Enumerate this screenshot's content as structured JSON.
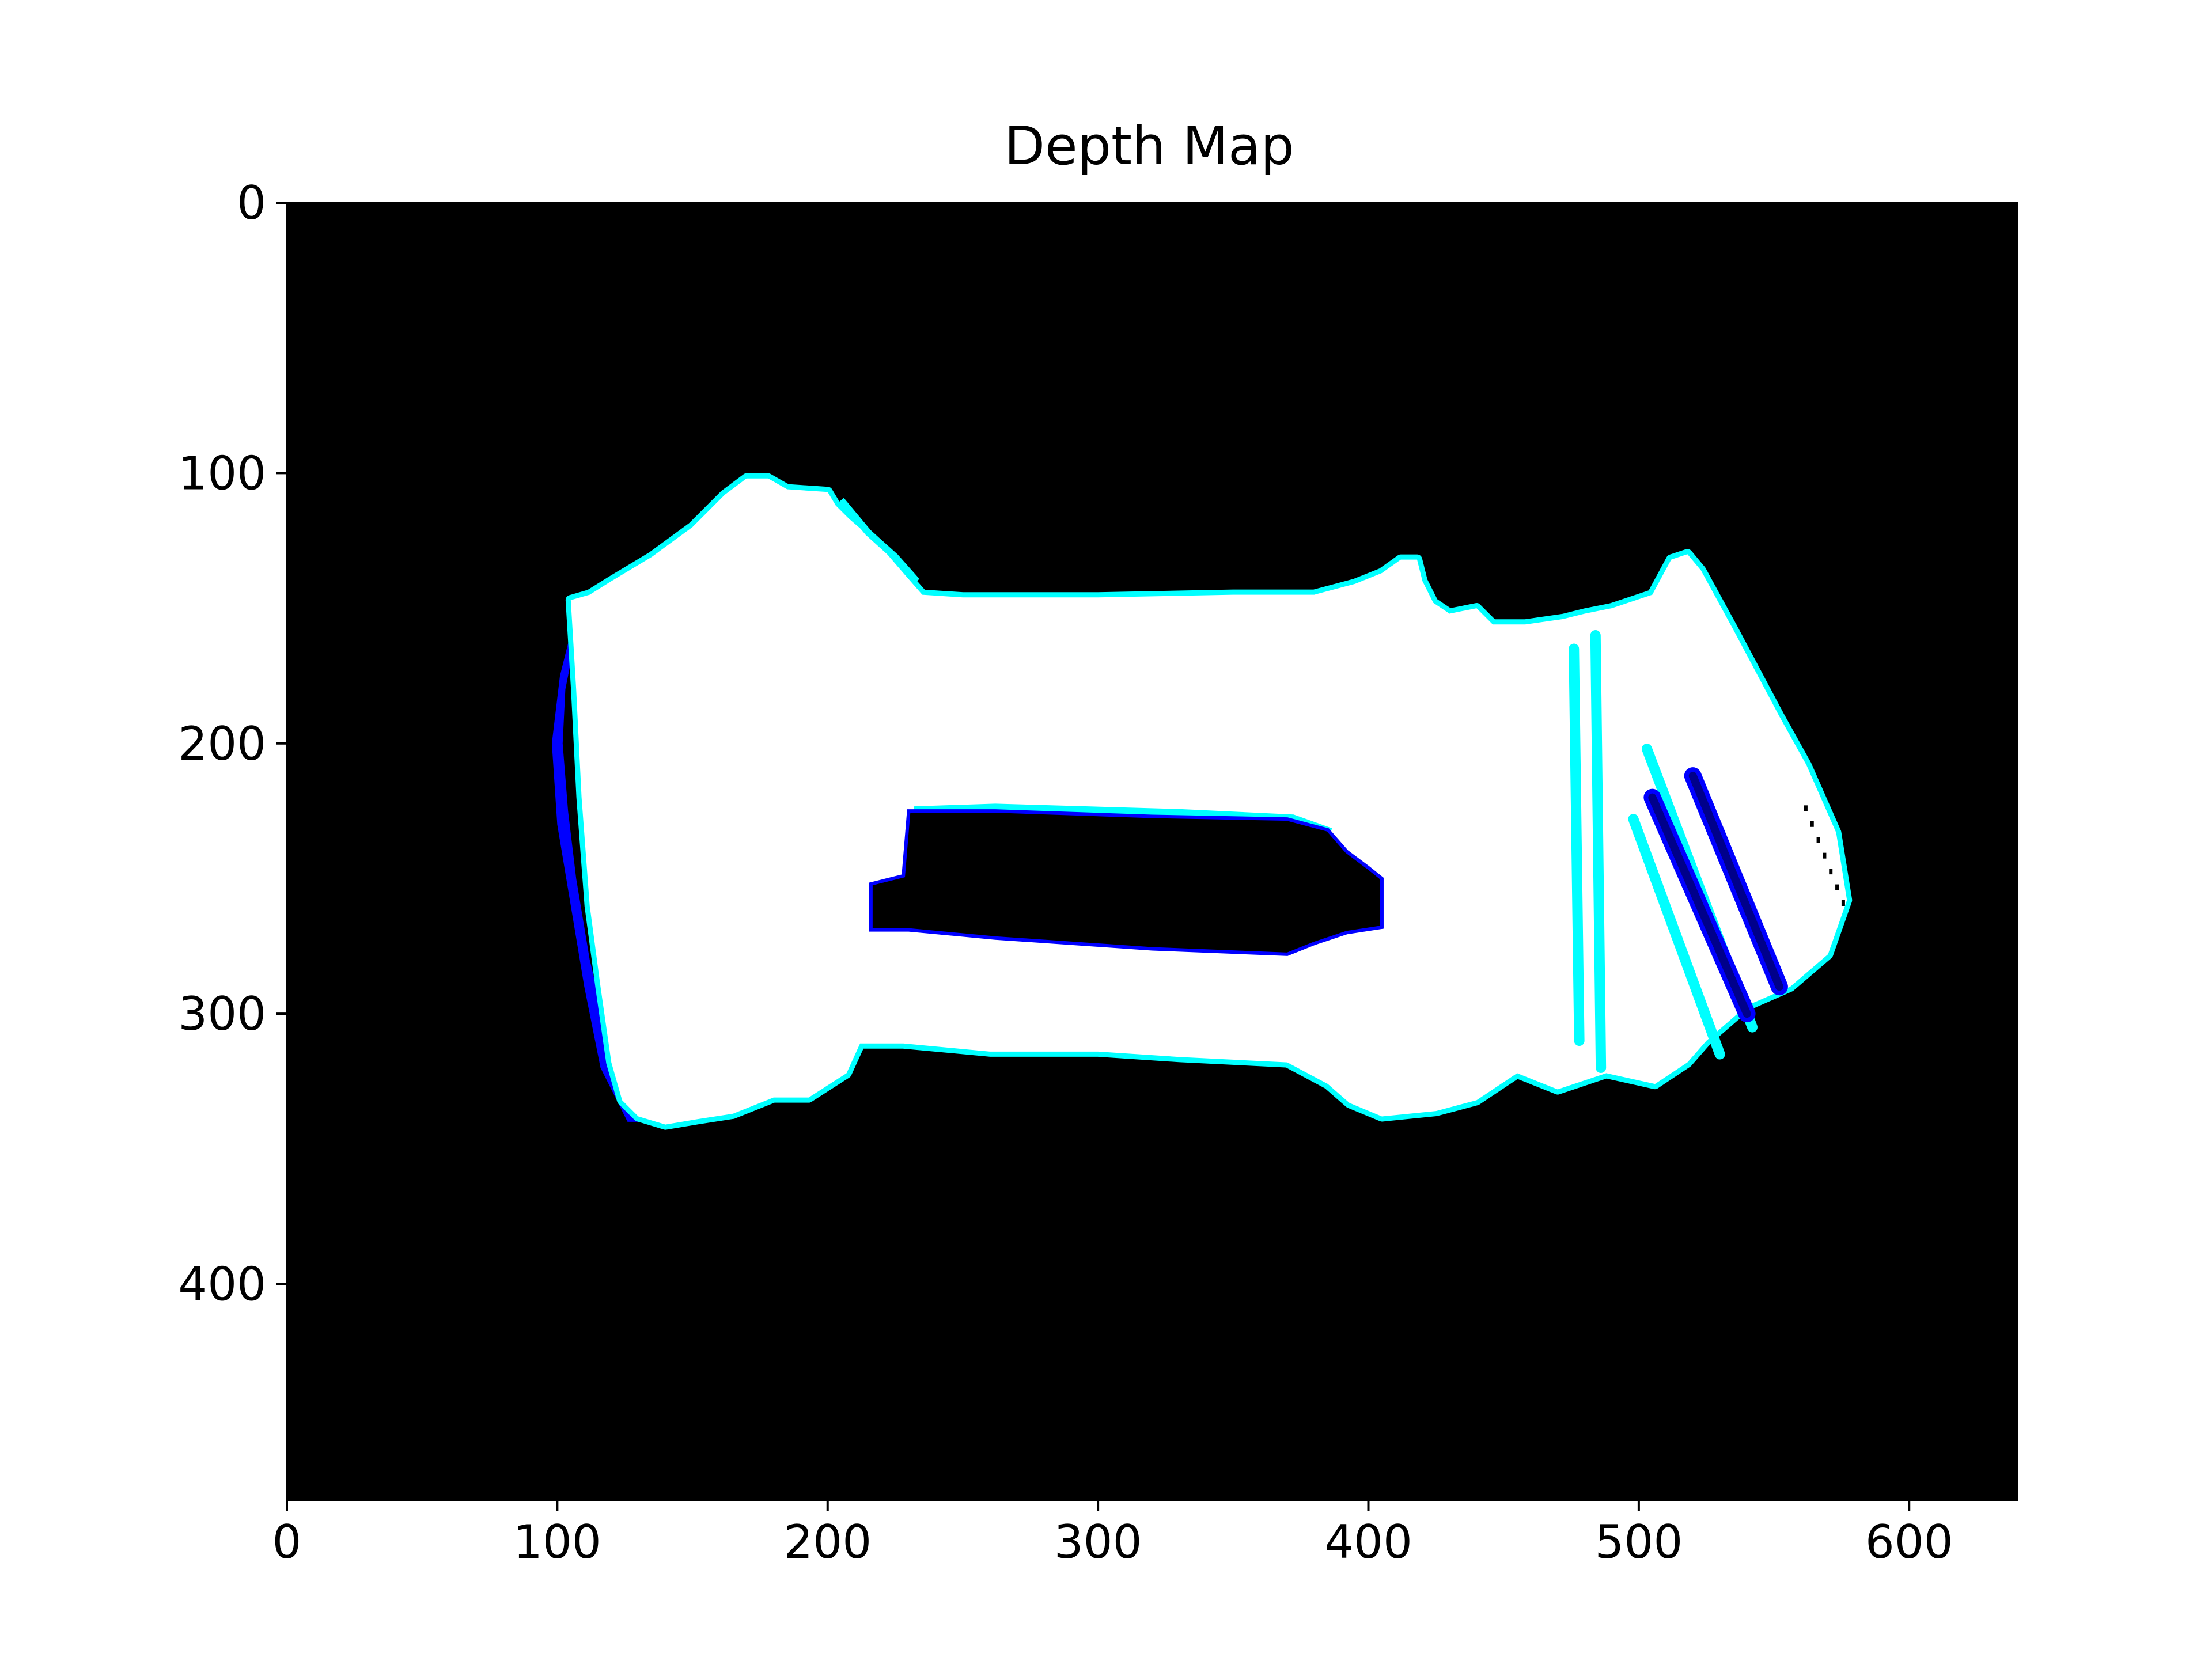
{
  "chart_data": {
    "type": "heatmap",
    "title": "Depth Map",
    "xlabel": "",
    "ylabel": "",
    "xlim": [
      0,
      640
    ],
    "ylim": [
      480,
      0
    ],
    "x_ticks": [
      0,
      100,
      200,
      300,
      400,
      500,
      600
    ],
    "y_ticks": [
      0,
      100,
      200,
      300,
      400
    ],
    "grid": false,
    "colors": {
      "background": "#000000",
      "object": "#ffffff",
      "edge_near": "#00ffff",
      "edge_far": "#0000ff",
      "deep": "#00008b"
    },
    "regions": {
      "body_outline": [
        [
          105,
          147
        ],
        [
          112,
          145
        ],
        [
          120,
          140
        ],
        [
          135,
          131
        ],
        [
          150,
          120
        ],
        [
          162,
          108
        ],
        [
          170,
          102
        ],
        [
          178,
          102
        ],
        [
          185,
          106
        ],
        [
          200,
          107
        ],
        [
          203,
          112
        ],
        [
          208,
          117
        ],
        [
          215,
          123
        ],
        [
          222,
          130
        ],
        [
          228,
          137
        ],
        [
          235,
          145
        ],
        [
          250,
          146
        ],
        [
          300,
          146
        ],
        [
          350,
          145
        ],
        [
          380,
          145
        ],
        [
          395,
          141
        ],
        [
          405,
          137
        ],
        [
          412,
          132
        ],
        [
          418,
          132
        ],
        [
          420,
          140
        ],
        [
          424,
          148
        ],
        [
          430,
          152
        ],
        [
          440,
          150
        ],
        [
          446,
          156
        ],
        [
          458,
          156
        ],
        [
          472,
          154
        ],
        [
          480,
          152
        ],
        [
          490,
          150
        ],
        [
          505,
          145
        ],
        [
          512,
          132
        ],
        [
          518,
          130
        ],
        [
          523,
          136
        ],
        [
          535,
          158
        ],
        [
          552,
          190
        ],
        [
          562,
          208
        ],
        [
          573,
          233
        ],
        [
          577,
          258
        ],
        [
          570,
          278
        ],
        [
          556,
          290
        ],
        [
          540,
          297
        ],
        [
          525,
          310
        ],
        [
          518,
          318
        ],
        [
          506,
          326
        ],
        [
          488,
          322
        ],
        [
          470,
          328
        ],
        [
          455,
          322
        ],
        [
          440,
          332
        ],
        [
          425,
          336
        ],
        [
          405,
          338
        ],
        [
          393,
          333
        ],
        [
          385,
          326
        ],
        [
          370,
          318
        ],
        [
          330,
          316
        ],
        [
          300,
          314
        ],
        [
          260,
          314
        ],
        [
          228,
          311
        ],
        [
          212,
          311
        ],
        [
          207,
          322
        ],
        [
          193,
          331
        ],
        [
          180,
          331
        ],
        [
          165,
          337
        ],
        [
          152,
          339
        ],
        [
          140,
          341
        ],
        [
          130,
          338
        ],
        [
          124,
          332
        ],
        [
          120,
          318
        ],
        [
          116,
          290
        ],
        [
          112,
          260
        ],
        [
          109,
          220
        ],
        [
          107,
          180
        ]
      ],
      "window_hole": [
        [
          230,
          225
        ],
        [
          262,
          225
        ],
        [
          320,
          227
        ],
        [
          370,
          228
        ],
        [
          385,
          232
        ],
        [
          392,
          240
        ],
        [
          400,
          246
        ],
        [
          405,
          250
        ],
        [
          405,
          268
        ],
        [
          392,
          270
        ],
        [
          380,
          274
        ],
        [
          370,
          278
        ],
        [
          320,
          276
        ],
        [
          262,
          272
        ],
        [
          230,
          269
        ],
        [
          216,
          269
        ],
        [
          216,
          252
        ],
        [
          228,
          249
        ]
      ],
      "left_far_edge": [
        [
          110,
          148
        ],
        [
          106,
          165
        ],
        [
          103,
          180
        ],
        [
          102,
          200
        ],
        [
          104,
          225
        ],
        [
          107,
          250
        ],
        [
          112,
          280
        ],
        [
          118,
          305
        ],
        [
          124,
          328
        ],
        [
          130,
          340
        ],
        [
          126,
          340
        ],
        [
          116,
          320
        ],
        [
          110,
          290
        ],
        [
          105,
          260
        ],
        [
          100,
          230
        ],
        [
          98,
          200
        ],
        [
          101,
          175
        ],
        [
          106,
          155
        ]
      ],
      "stripes_dark": [
        {
          "from": [
            505,
            220
          ],
          "to": [
            540,
            300
          ]
        },
        {
          "from": [
            520,
            212
          ],
          "to": [
            552,
            290
          ]
        }
      ],
      "stripes_cyan": [
        {
          "from": [
            503,
            202
          ],
          "to": [
            542,
            305
          ]
        },
        {
          "from": [
            498,
            228
          ],
          "to": [
            530,
            315
          ]
        },
        {
          "from": [
            484,
            160
          ],
          "to": [
            486,
            320
          ]
        },
        {
          "from": [
            476,
            165
          ],
          "to": [
            478,
            310
          ]
        }
      ],
      "hole_cyan_edge": [
        [
          232,
          225
        ],
        [
          262,
          224
        ],
        [
          330,
          226
        ],
        [
          372,
          228
        ],
        [
          386,
          233
        ]
      ],
      "top_cyan_edge": [
        [
          205,
          110
        ],
        [
          215,
          122
        ],
        [
          225,
          131
        ],
        [
          233,
          140
        ]
      ],
      "right_noise": {
        "from": [
          560,
          220
        ],
        "to": [
          575,
          258
        ]
      }
    }
  }
}
